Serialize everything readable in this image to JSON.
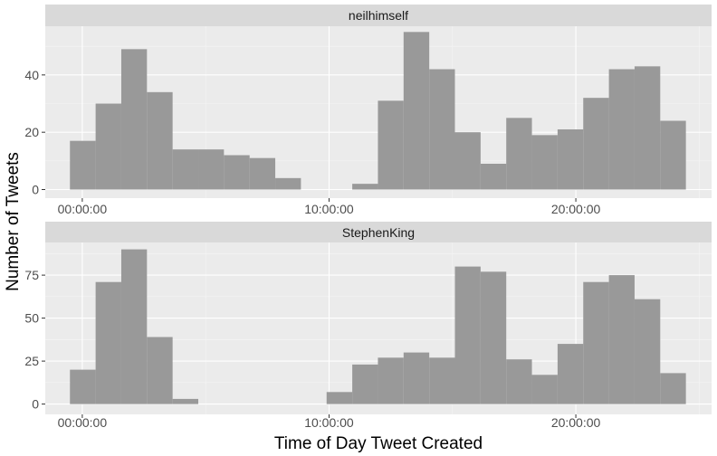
{
  "chart_data": {
    "type": "bar",
    "subtype": "faceted-histogram",
    "xlabel": "Time of Day Tweet Created",
    "ylabel": "Number of Tweets",
    "x_tick_labels": [
      "00:00:00",
      "10:00:00",
      "20:00:00"
    ],
    "x_tick_hours": [
      0,
      10,
      20
    ],
    "xlim_hours": [
      -1.5,
      25.5
    ],
    "bin_width_hours": 1.04,
    "first_bin_start_hours": -0.5,
    "grid": true,
    "bar_color": "#999999",
    "panel_background": "#ebebeb",
    "strip_background": "#d9d9d9",
    "panels": [
      {
        "name": "neilhimself",
        "ylim": [
          -3,
          57
        ],
        "y_ticks": [
          0,
          20,
          40
        ],
        "values": [
          17,
          30,
          49,
          34,
          14,
          14,
          12,
          11,
          4,
          0,
          0,
          2,
          31,
          55,
          42,
          20,
          9,
          25,
          19,
          21,
          32,
          42,
          43,
          24
        ]
      },
      {
        "name": "StephenKing",
        "ylim": [
          -6,
          94
        ],
        "y_ticks": [
          0,
          25,
          50,
          75
        ],
        "values": [
          20,
          71,
          90,
          39,
          3,
          0,
          0,
          0,
          0,
          0,
          7,
          23,
          27,
          30,
          27,
          80,
          77,
          26,
          17,
          35,
          71,
          75,
          61,
          18
        ]
      }
    ]
  }
}
